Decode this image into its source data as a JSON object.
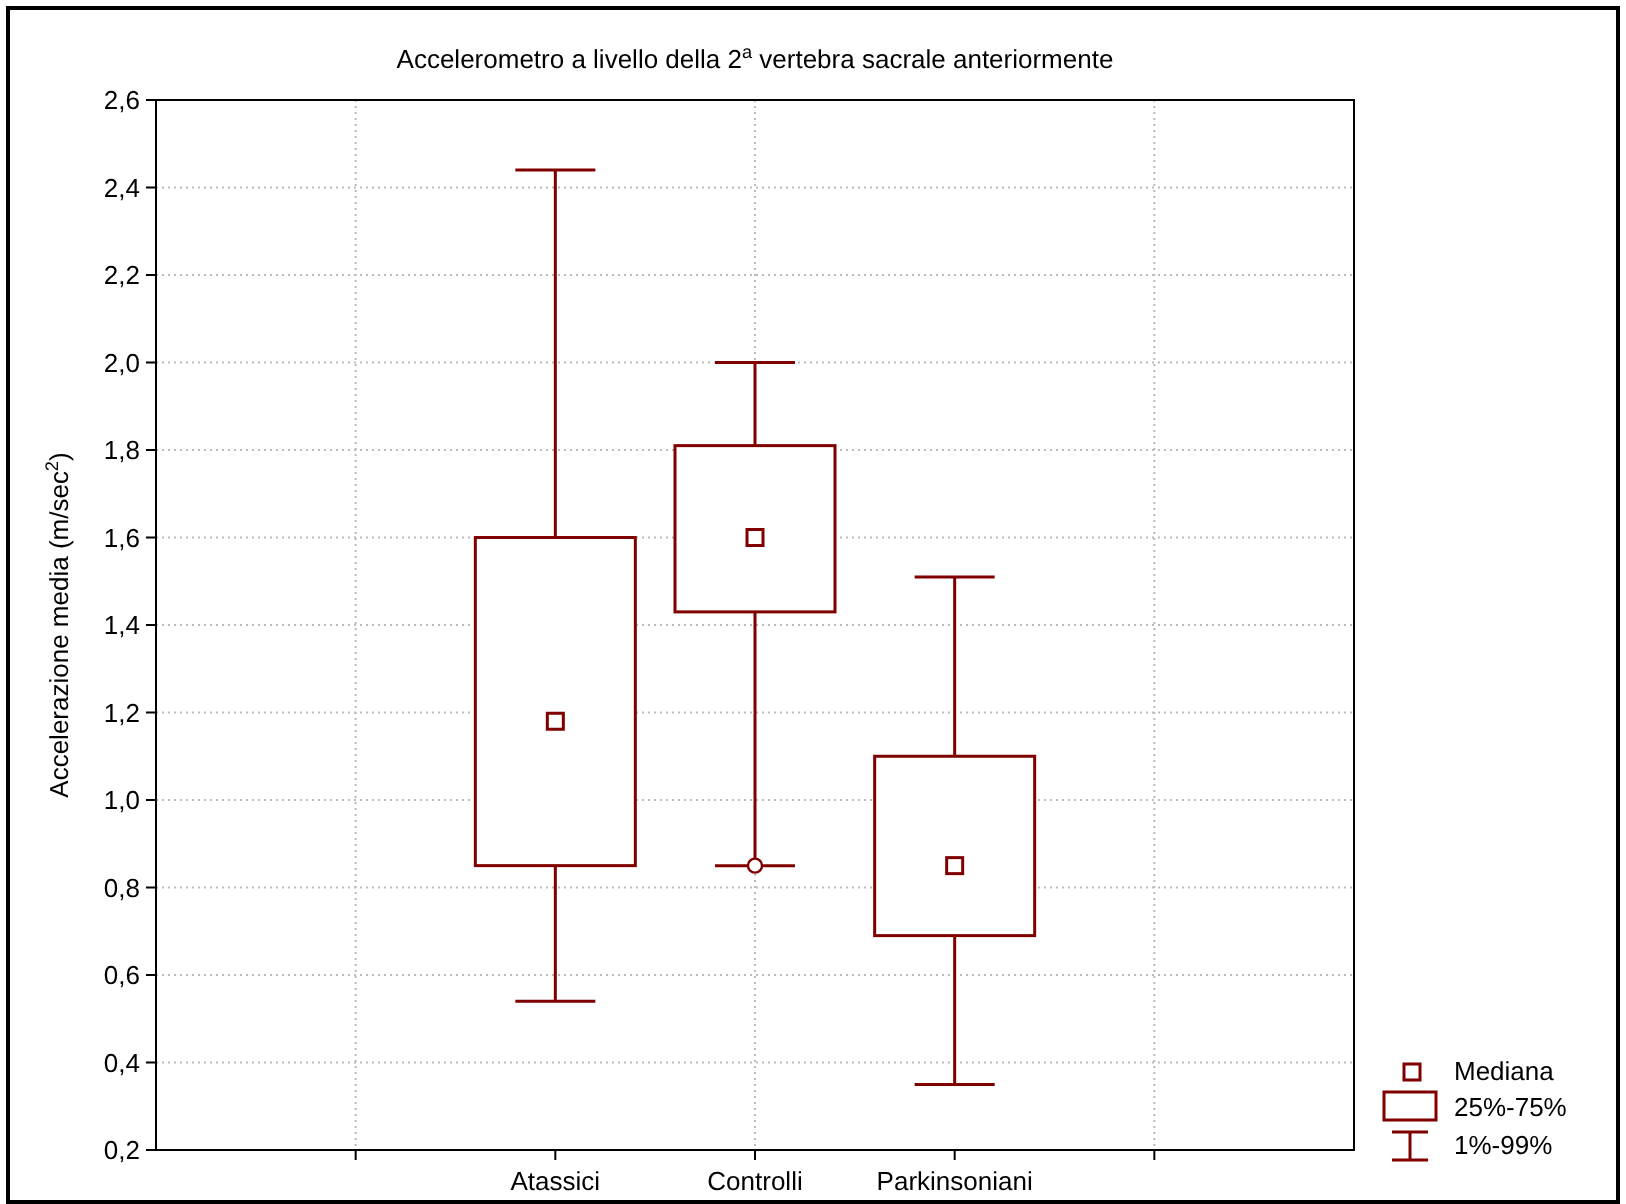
{
  "chart_data": {
    "type": "box",
    "title": "Accelerometro a livello della 2$^{a}$ vertebra sacrale anteriormente",
    "ylabel": "Accelerazione media (m/sec$^{2}$)",
    "categories": [
      null,
      "Atassici",
      "Controlli",
      "Parkinsoniani",
      null
    ],
    "color": "#800000",
    "boxes": [
      null,
      {
        "low": 0.54,
        "q1": 0.85,
        "median": 1.18,
        "q3": 1.6,
        "high": 2.44
      },
      {
        "low": 0.85,
        "q1": 1.43,
        "median": 1.6,
        "q3": 1.81,
        "high": 2.0,
        "outliers": [
          0.85
        ]
      },
      {
        "low": 0.35,
        "q1": 0.69,
        "median": 0.85,
        "q3": 1.1,
        "high": 1.51
      },
      null
    ],
    "ylim": [
      0.2,
      2.6
    ],
    "yticks": [
      {
        "value": 0.2,
        "label": "0,2"
      },
      {
        "value": 0.4,
        "label": "0,4"
      },
      {
        "value": 0.6,
        "label": "0,6"
      },
      {
        "value": 0.8,
        "label": "0,8"
      },
      {
        "value": 1.0,
        "label": "1,0"
      },
      {
        "value": 1.2,
        "label": "1,2"
      },
      {
        "value": 1.4,
        "label": "1,4"
      },
      {
        "value": 1.6,
        "label": "1,6"
      },
      {
        "value": 1.8,
        "label": "1,8"
      },
      {
        "value": 2.0,
        "label": "2,0"
      },
      {
        "value": 2.2,
        "label": "2,2"
      },
      {
        "value": 2.4,
        "label": "2,4"
      },
      {
        "value": 2.6,
        "label": "2,6"
      }
    ],
    "grid": true,
    "marker": "square",
    "annotations": [
      "Mediana",
      "25%-75%",
      "1%-99%"
    ]
  }
}
